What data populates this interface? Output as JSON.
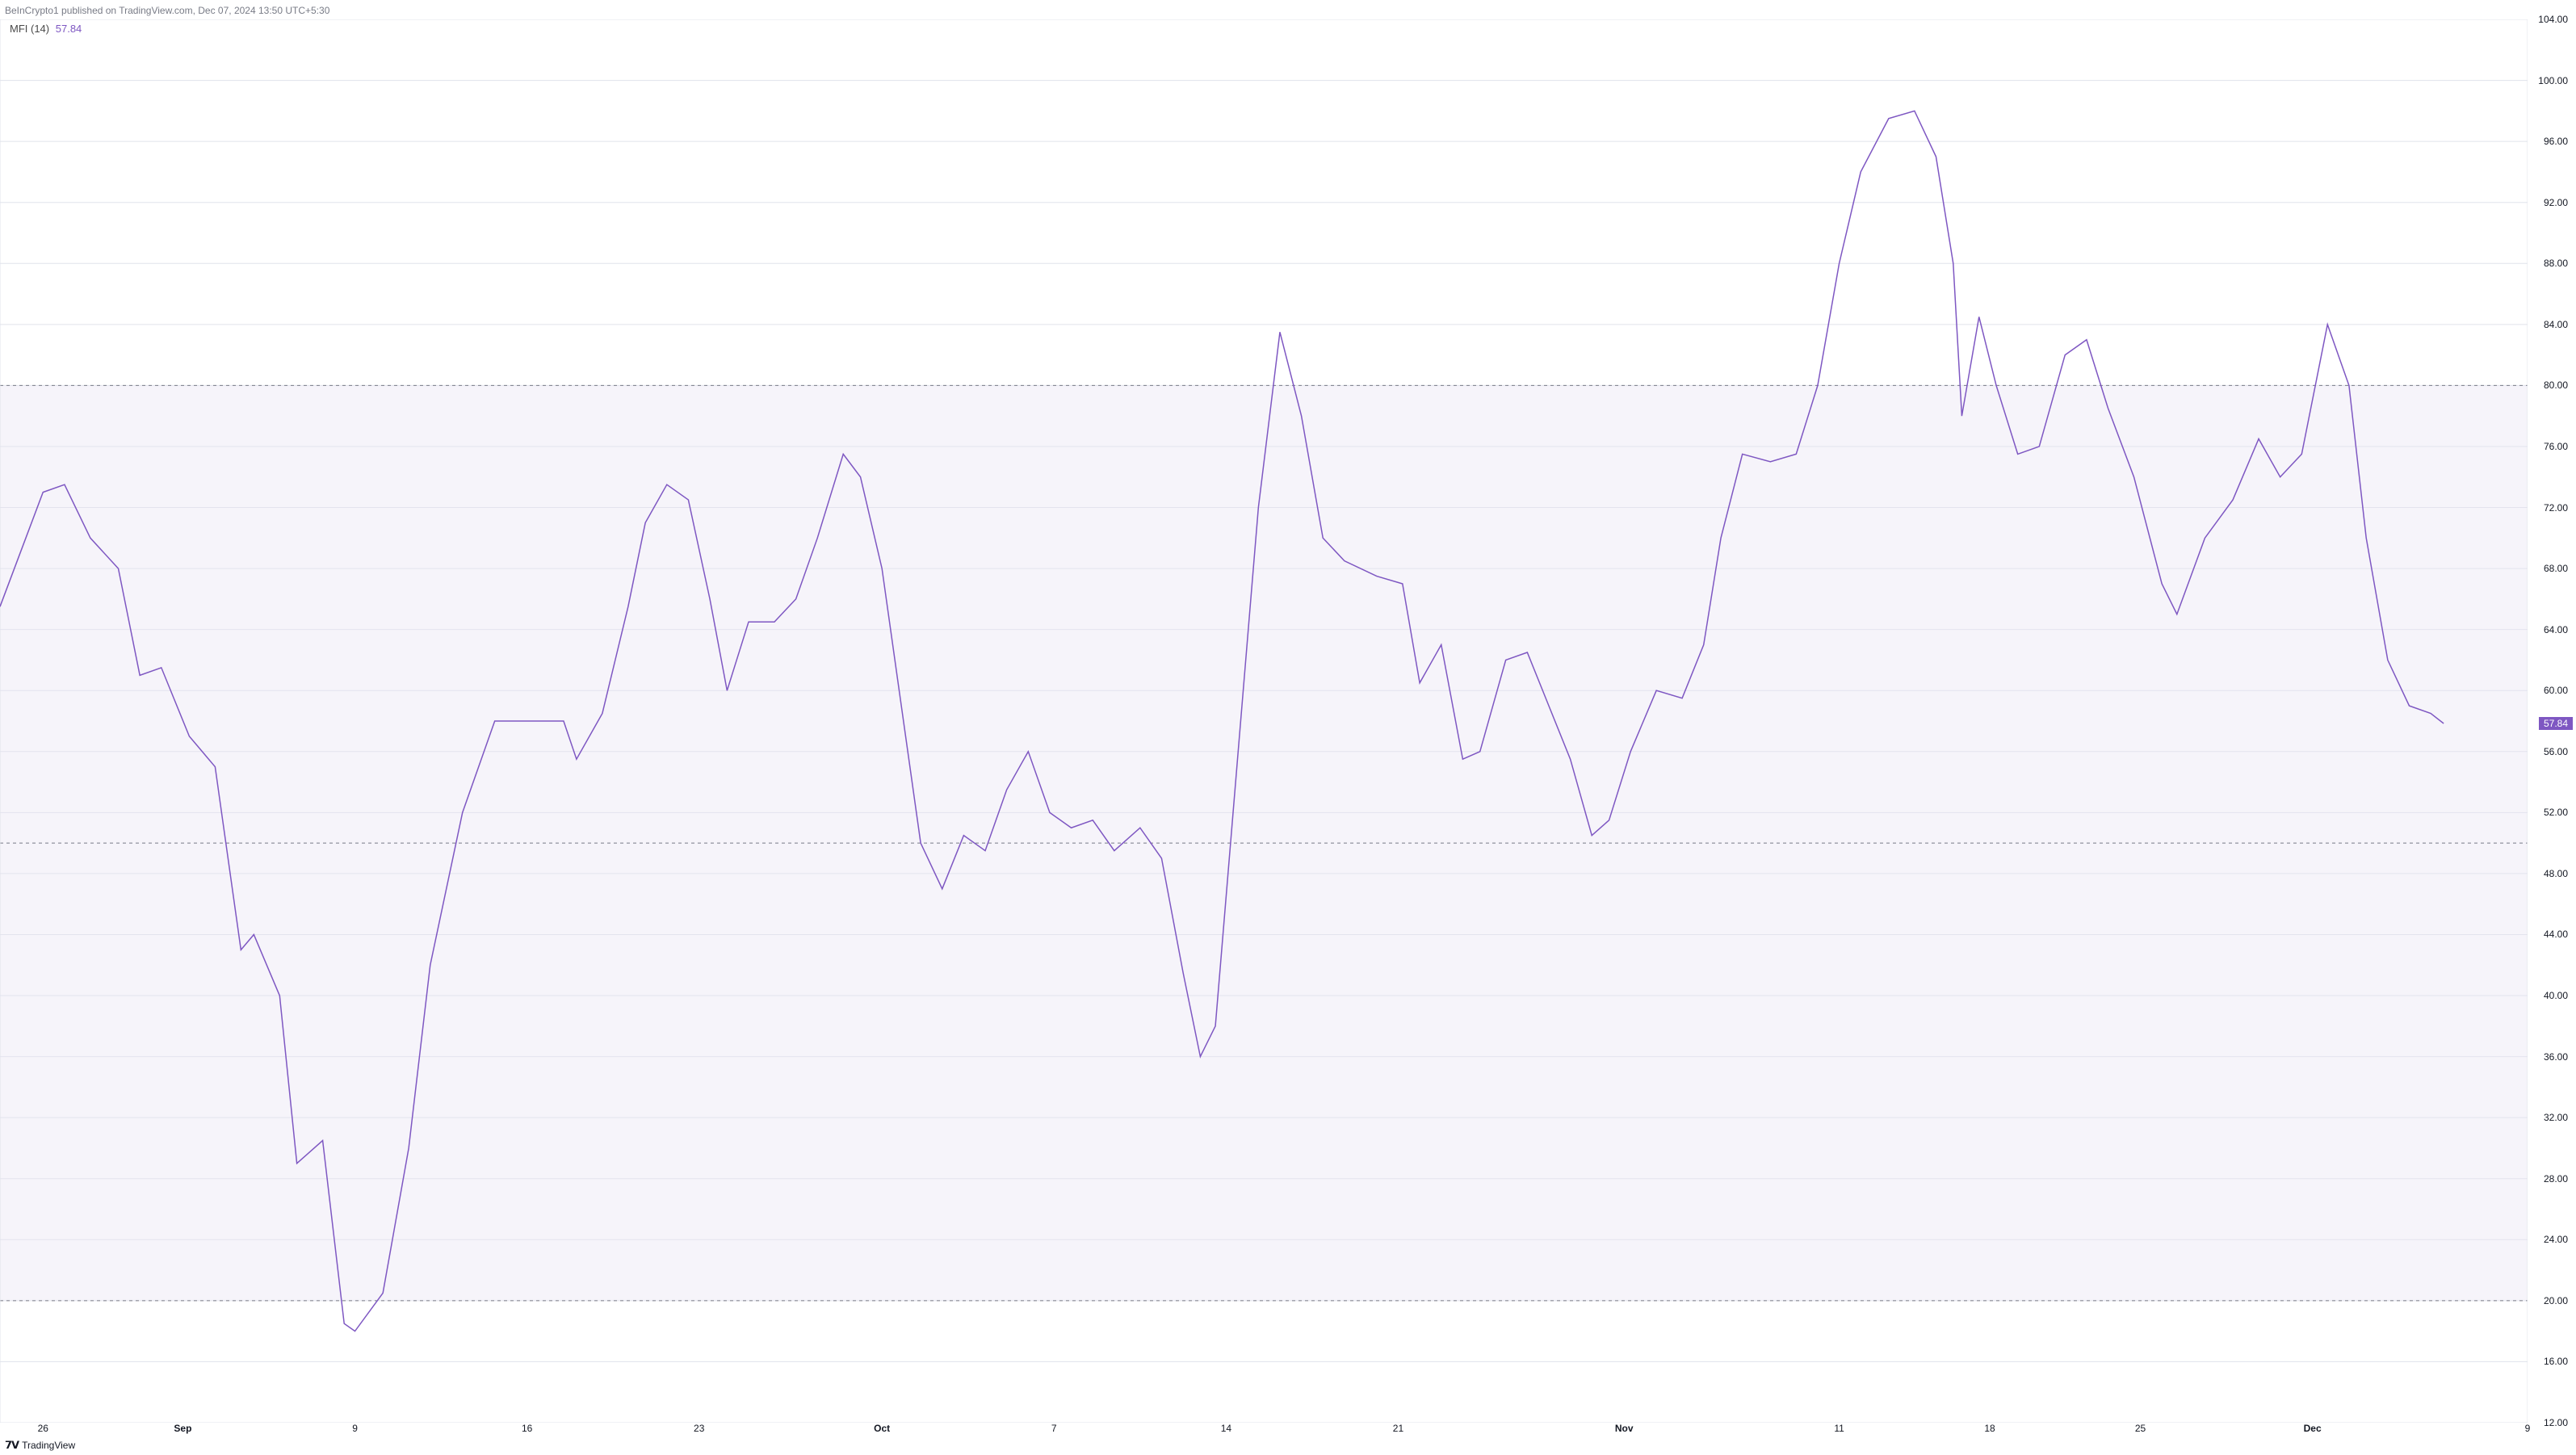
{
  "header": {
    "publisher_text": "BeInCrypto1 published on TradingView.com, Dec 07, 2024 13:50 UTC+5:30"
  },
  "indicator": {
    "name": "MFI (14)",
    "current_value": "57.84",
    "value_color": "#7e57c2"
  },
  "chart": {
    "type": "line",
    "line_color": "#7e57c2",
    "line_width": 1.5,
    "background_color": "#ffffff",
    "grid_color": "#e0e3eb",
    "band_fill_color": "#e8e4f3",
    "band_fill_opacity": 0.4,
    "dashed_line_color": "#787b86",
    "upper_band": 80,
    "middle_band": 50,
    "lower_band": 20,
    "ylim": [
      12,
      104
    ],
    "y_ticks": [
      104,
      100,
      96,
      92,
      88,
      84,
      80,
      76,
      72,
      68,
      64,
      60,
      56,
      52,
      48,
      44,
      40,
      36,
      32,
      28,
      24,
      20,
      16,
      12
    ],
    "y_tick_labels": [
      "104.00",
      "100.00",
      "96.00",
      "92.00",
      "88.00",
      "84.00",
      "80.00",
      "76.00",
      "72.00",
      "68.00",
      "64.00",
      "60.00",
      "56.00",
      "52.00",
      "48.00",
      "44.00",
      "40.00",
      "36.00",
      "32.00",
      "28.00",
      "24.00",
      "20.00",
      "16.00",
      "12.00"
    ],
    "current_y": 57.84,
    "x_ticks": [
      {
        "pos": 0.02,
        "label": "26",
        "bold": false
      },
      {
        "pos": 0.085,
        "label": "Sep",
        "bold": true
      },
      {
        "pos": 0.175,
        "label": "9",
        "bold": false
      },
      {
        "pos": 0.26,
        "label": "16",
        "bold": false
      },
      {
        "pos": 0.343,
        "label": "23",
        "bold": false
      },
      {
        "pos": 0.431,
        "label": "Oct",
        "bold": true
      },
      {
        "pos": 0.517,
        "label": "7",
        "bold": false
      },
      {
        "pos": 0.6,
        "label": "14",
        "bold": false
      },
      {
        "pos": 0.687,
        "label": "21",
        "bold": false
      },
      {
        "pos": 0.775,
        "label": "Nov",
        "bold": true
      },
      {
        "pos": 0.888,
        "label": "11",
        "bold": false
      },
      {
        "pos": 0.975,
        "label": "18",
        "bold": false
      }
    ],
    "x_ticks_full": [
      {
        "pos": 0.02,
        "label": "26",
        "bold": false
      },
      {
        "pos": 0.085,
        "label": "Sep",
        "bold": true
      },
      {
        "pos": 0.165,
        "label": "9",
        "bold": false
      },
      {
        "pos": 0.245,
        "label": "16",
        "bold": false
      },
      {
        "pos": 0.325,
        "label": "23",
        "bold": false
      },
      {
        "pos": 0.41,
        "label": "Oct",
        "bold": true
      },
      {
        "pos": 0.49,
        "label": "7",
        "bold": false
      },
      {
        "pos": 0.57,
        "label": "14",
        "bold": false
      },
      {
        "pos": 0.65,
        "label": "21",
        "bold": false
      },
      {
        "pos": 0.755,
        "label": "Nov",
        "bold": true
      },
      {
        "pos": 0.855,
        "label": "11",
        "bold": false
      },
      {
        "pos": 0.925,
        "label": "18",
        "bold": false
      },
      {
        "pos": 0.995,
        "label": "25",
        "bold": false
      },
      {
        "pos": 1.075,
        "label": "Dec",
        "bold": true
      },
      {
        "pos": 1.175,
        "label": "9",
        "bold": false
      }
    ],
    "series": [
      {
        "x": 0.0,
        "y": 65.5
      },
      {
        "x": 0.012,
        "y": 70.0
      },
      {
        "x": 0.02,
        "y": 73.0
      },
      {
        "x": 0.03,
        "y": 73.5
      },
      {
        "x": 0.042,
        "y": 70.0
      },
      {
        "x": 0.055,
        "y": 68.0
      },
      {
        "x": 0.065,
        "y": 61.0
      },
      {
        "x": 0.075,
        "y": 61.5
      },
      {
        "x": 0.088,
        "y": 57.0
      },
      {
        "x": 0.1,
        "y": 55.0
      },
      {
        "x": 0.112,
        "y": 43.0
      },
      {
        "x": 0.118,
        "y": 44.0
      },
      {
        "x": 0.13,
        "y": 40.0
      },
      {
        "x": 0.138,
        "y": 29.0
      },
      {
        "x": 0.15,
        "y": 30.5
      },
      {
        "x": 0.16,
        "y": 18.5
      },
      {
        "x": 0.165,
        "y": 18.0
      },
      {
        "x": 0.178,
        "y": 20.5
      },
      {
        "x": 0.19,
        "y": 30.0
      },
      {
        "x": 0.2,
        "y": 42.0
      },
      {
        "x": 0.215,
        "y": 52.0
      },
      {
        "x": 0.23,
        "y": 58.0
      },
      {
        "x": 0.248,
        "y": 58.0
      },
      {
        "x": 0.262,
        "y": 58.0
      },
      {
        "x": 0.268,
        "y": 55.5
      },
      {
        "x": 0.28,
        "y": 58.5
      },
      {
        "x": 0.292,
        "y": 65.5
      },
      {
        "x": 0.3,
        "y": 71.0
      },
      {
        "x": 0.31,
        "y": 73.5
      },
      {
        "x": 0.32,
        "y": 72.5
      },
      {
        "x": 0.33,
        "y": 66.0
      },
      {
        "x": 0.338,
        "y": 60.0
      },
      {
        "x": 0.348,
        "y": 64.5
      },
      {
        "x": 0.36,
        "y": 64.5
      },
      {
        "x": 0.37,
        "y": 66.0
      },
      {
        "x": 0.38,
        "y": 70.0
      },
      {
        "x": 0.392,
        "y": 75.5
      },
      {
        "x": 0.4,
        "y": 74.0
      },
      {
        "x": 0.41,
        "y": 68.0
      },
      {
        "x": 0.42,
        "y": 58.0
      },
      {
        "x": 0.428,
        "y": 50.0
      },
      {
        "x": 0.438,
        "y": 47.0
      },
      {
        "x": 0.448,
        "y": 50.5
      },
      {
        "x": 0.458,
        "y": 49.5
      },
      {
        "x": 0.468,
        "y": 53.5
      },
      {
        "x": 0.478,
        "y": 56.0
      },
      {
        "x": 0.488,
        "y": 52.0
      },
      {
        "x": 0.498,
        "y": 51.0
      },
      {
        "x": 0.508,
        "y": 51.5
      },
      {
        "x": 0.518,
        "y": 49.5
      },
      {
        "x": 0.53,
        "y": 51.0
      },
      {
        "x": 0.54,
        "y": 49.0
      },
      {
        "x": 0.55,
        "y": 41.5
      },
      {
        "x": 0.558,
        "y": 36.0
      },
      {
        "x": 0.565,
        "y": 38.0
      },
      {
        "x": 0.575,
        "y": 55.0
      },
      {
        "x": 0.585,
        "y": 72.0
      },
      {
        "x": 0.595,
        "y": 83.5
      },
      {
        "x": 0.605,
        "y": 78.0
      },
      {
        "x": 0.615,
        "y": 70.0
      },
      {
        "x": 0.625,
        "y": 68.5
      },
      {
        "x": 0.64,
        "y": 67.5
      },
      {
        "x": 0.652,
        "y": 67.0
      },
      {
        "x": 0.66,
        "y": 60.5
      },
      {
        "x": 0.67,
        "y": 63.0
      },
      {
        "x": 0.68,
        "y": 55.5
      },
      {
        "x": 0.688,
        "y": 56.0
      },
      {
        "x": 0.7,
        "y": 62.0
      },
      {
        "x": 0.71,
        "y": 62.5
      },
      {
        "x": 0.72,
        "y": 59.0
      },
      {
        "x": 0.73,
        "y": 55.5
      },
      {
        "x": 0.74,
        "y": 50.5
      },
      {
        "x": 0.748,
        "y": 51.5
      },
      {
        "x": 0.758,
        "y": 56.0
      },
      {
        "x": 0.77,
        "y": 60.0
      },
      {
        "x": 0.782,
        "y": 59.5
      },
      {
        "x": 0.792,
        "y": 63.0
      },
      {
        "x": 0.8,
        "y": 70.0
      },
      {
        "x": 0.81,
        "y": 75.5
      },
      {
        "x": 0.823,
        "y": 75.0
      },
      {
        "x": 0.835,
        "y": 75.5
      },
      {
        "x": 0.845,
        "y": 80.0
      },
      {
        "x": 0.855,
        "y": 88.0
      },
      {
        "x": 0.865,
        "y": 94.0
      },
      {
        "x": 0.878,
        "y": 97.5
      },
      {
        "x": 0.89,
        "y": 98.0
      },
      {
        "x": 0.9,
        "y": 95.0
      },
      {
        "x": 0.908,
        "y": 88.0
      },
      {
        "x": 0.912,
        "y": 78.0
      },
      {
        "x": 0.92,
        "y": 84.5
      },
      {
        "x": 0.928,
        "y": 80.0
      },
      {
        "x": 0.938,
        "y": 75.5
      },
      {
        "x": 0.948,
        "y": 76.0
      },
      {
        "x": 0.96,
        "y": 82.0
      },
      {
        "x": 0.97,
        "y": 83.0
      },
      {
        "x": 0.98,
        "y": 78.5
      },
      {
        "x": 0.992,
        "y": 74.0
      },
      {
        "x": 1.005,
        "y": 67.0
      },
      {
        "x": 1.012,
        "y": 65.0
      },
      {
        "x": 1.025,
        "y": 70.0
      },
      {
        "x": 1.038,
        "y": 72.5
      },
      {
        "x": 1.05,
        "y": 76.5
      },
      {
        "x": 1.06,
        "y": 74.0
      },
      {
        "x": 1.07,
        "y": 75.5
      },
      {
        "x": 1.082,
        "y": 84.0
      },
      {
        "x": 1.092,
        "y": 80.0
      },
      {
        "x": 1.1,
        "y": 70.0
      },
      {
        "x": 1.11,
        "y": 62.0
      },
      {
        "x": 1.12,
        "y": 59.0
      },
      {
        "x": 1.13,
        "y": 58.5
      },
      {
        "x": 1.136,
        "y": 57.84
      }
    ],
    "x_domain_max": 1.175
  },
  "footer": {
    "logo": "TV",
    "text": "TradingView"
  }
}
